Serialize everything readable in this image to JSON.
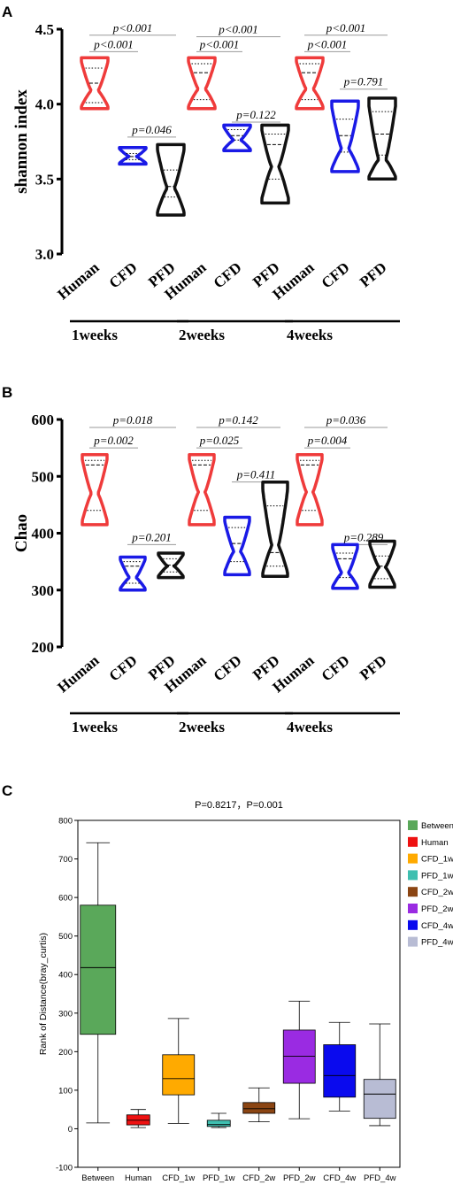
{
  "chart_data": [
    {
      "panel": "A",
      "type": "violin",
      "ylabel": "shannon index",
      "ylim": [
        3.0,
        4.5
      ],
      "yticks": [
        "3.0",
        "3.5",
        "4.0",
        "4.5"
      ],
      "categories": [
        "Human",
        "CFD",
        "PFD",
        "Human",
        "CFD",
        "PFD",
        "Human",
        "CFD",
        "PFD"
      ],
      "groups": [
        "1weeks",
        "2weeks",
        "4weeks"
      ],
      "series": [
        {
          "group": "1weeks",
          "category": "Human",
          "color": "#ef3b3b",
          "min": 3.97,
          "q1": 4.01,
          "median": 4.14,
          "q3": 4.24,
          "max": 4.31,
          "neck": 4.09
        },
        {
          "group": "1weeks",
          "category": "CFD",
          "color": "#1a1ae6",
          "min": 3.6,
          "q1": 3.63,
          "median": 3.65,
          "q3": 3.67,
          "max": 3.71,
          "neck": 3.65
        },
        {
          "group": "1weeks",
          "category": "PFD",
          "color": "#111111",
          "min": 3.26,
          "q1": 3.38,
          "median": 3.45,
          "q3": 3.56,
          "max": 3.73,
          "neck": 3.44
        },
        {
          "group": "2weeks",
          "category": "Human",
          "color": "#ef3b3b",
          "min": 3.97,
          "q1": 4.03,
          "median": 4.21,
          "q3": 4.27,
          "max": 4.31,
          "neck": 4.1
        },
        {
          "group": "2weeks",
          "category": "CFD",
          "color": "#1a1ae6",
          "min": 3.69,
          "q1": 3.76,
          "median": 3.79,
          "q3": 3.83,
          "max": 3.86,
          "neck": 3.76
        },
        {
          "group": "2weeks",
          "category": "PFD",
          "color": "#111111",
          "min": 3.34,
          "q1": 3.5,
          "median": 3.73,
          "q3": 3.8,
          "max": 3.86,
          "neck": 3.58
        },
        {
          "group": "4weeks",
          "category": "Human",
          "color": "#ef3b3b",
          "min": 3.97,
          "q1": 4.03,
          "median": 4.21,
          "q3": 4.27,
          "max": 4.31,
          "neck": 4.1
        },
        {
          "group": "4weeks",
          "category": "CFD",
          "color": "#1a1ae6",
          "min": 3.55,
          "q1": 3.68,
          "median": 3.79,
          "q3": 3.9,
          "max": 4.02,
          "neck": 3.7
        },
        {
          "group": "4weeks",
          "category": "PFD",
          "color": "#111111",
          "min": 3.5,
          "q1": 3.66,
          "median": 3.8,
          "q3": 3.95,
          "max": 4.04,
          "neck": 3.63
        }
      ],
      "brackets": [
        {
          "from": 0,
          "to": 2,
          "y": 4.46,
          "label": "p<0.001"
        },
        {
          "from": 0,
          "to": 1,
          "y": 4.35,
          "label": "p<0.001"
        },
        {
          "from": 1,
          "to": 2,
          "y": 3.78,
          "label": "p=0.046"
        },
        {
          "from": 3,
          "to": 5,
          "y": 4.45,
          "label": "p<0.001"
        },
        {
          "from": 3,
          "to": 4,
          "y": 4.35,
          "label": "p<0.001"
        },
        {
          "from": 4,
          "to": 5,
          "y": 3.88,
          "label": "p=0.122"
        },
        {
          "from": 6,
          "to": 8,
          "y": 4.46,
          "label": "p<0.001"
        },
        {
          "from": 6,
          "to": 7,
          "y": 4.35,
          "label": "p<0.001"
        },
        {
          "from": 7,
          "to": 8,
          "y": 4.1,
          "label": "p=0.791"
        }
      ]
    },
    {
      "panel": "B",
      "type": "violin",
      "ylabel": "Chao",
      "ylim": [
        200,
        600
      ],
      "yticks": [
        "200",
        "300",
        "400",
        "500",
        "600"
      ],
      "categories": [
        "Human",
        "CFD",
        "PFD",
        "Human",
        "CFD",
        "PFD",
        "Human",
        "CFD",
        "PFD"
      ],
      "groups": [
        "1weeks",
        "2weeks",
        "4weeks"
      ],
      "series": [
        {
          "group": "1weeks",
          "category": "Human",
          "color": "#ef3b3b",
          "min": 415,
          "q1": 440,
          "median": 520,
          "q3": 528,
          "max": 538,
          "neck": 470
        },
        {
          "group": "1weeks",
          "category": "CFD",
          "color": "#1a1ae6",
          "min": 300,
          "q1": 312,
          "median": 342,
          "q3": 350,
          "max": 358,
          "neck": 322
        },
        {
          "group": "1weeks",
          "category": "PFD",
          "color": "#111111",
          "min": 322,
          "q1": 332,
          "median": 344,
          "q3": 355,
          "max": 365,
          "neck": 342
        },
        {
          "group": "2weeks",
          "category": "Human",
          "color": "#ef3b3b",
          "min": 415,
          "q1": 440,
          "median": 520,
          "q3": 528,
          "max": 538,
          "neck": 472
        },
        {
          "group": "2weeks",
          "category": "CFD",
          "color": "#1a1ae6",
          "min": 327,
          "q1": 350,
          "median": 382,
          "q3": 410,
          "max": 428,
          "neck": 368
        },
        {
          "group": "2weeks",
          "category": "PFD",
          "color": "#111111",
          "min": 324,
          "q1": 342,
          "median": 366,
          "q3": 448,
          "max": 490,
          "neck": 378
        },
        {
          "group": "4weeks",
          "category": "Human",
          "color": "#ef3b3b",
          "min": 415,
          "q1": 440,
          "median": 520,
          "q3": 528,
          "max": 538,
          "neck": 472
        },
        {
          "group": "4weeks",
          "category": "CFD",
          "color": "#1a1ae6",
          "min": 303,
          "q1": 322,
          "median": 355,
          "q3": 365,
          "max": 380,
          "neck": 330
        },
        {
          "group": "4weeks",
          "category": "PFD",
          "color": "#111111",
          "min": 305,
          "q1": 320,
          "median": 342,
          "q3": 360,
          "max": 386,
          "neck": 340
        }
      ],
      "brackets": [
        {
          "from": 0,
          "to": 2,
          "y": 586,
          "label": "p=0.018"
        },
        {
          "from": 0,
          "to": 1,
          "y": 550,
          "label": "p=0.002"
        },
        {
          "from": 1,
          "to": 2,
          "y": 380,
          "label": "p=0.201"
        },
        {
          "from": 3,
          "to": 5,
          "y": 586,
          "label": "p=0.142"
        },
        {
          "from": 3,
          "to": 4,
          "y": 550,
          "label": "p=0.025"
        },
        {
          "from": 4,
          "to": 5,
          "y": 490,
          "label": "p=0.411"
        },
        {
          "from": 6,
          "to": 8,
          "y": 586,
          "label": "p=0.036"
        },
        {
          "from": 6,
          "to": 7,
          "y": 550,
          "label": "p=0.004"
        },
        {
          "from": 7,
          "to": 8,
          "y": 380,
          "label": "p=0.289"
        }
      ]
    },
    {
      "panel": "C",
      "type": "box",
      "title": "P=0.8217，P=0.001",
      "ylabel": "Rank of Distance(bray_curtis)",
      "ylim": [
        -100,
        800
      ],
      "yticks": [
        "-100",
        "0",
        "100",
        "200",
        "300",
        "400",
        "500",
        "600",
        "700",
        "800"
      ],
      "categories": [
        "Between",
        "Human",
        "CFD_1w",
        "PFD_1w",
        "CFD_2w",
        "PFD_2w",
        "CFD_4w",
        "PFD_4w"
      ],
      "series": [
        {
          "name": "Between",
          "color": "#5aa85a",
          "min": 15,
          "q1": 245,
          "median": 418,
          "q3": 580,
          "max": 742
        },
        {
          "name": "Human",
          "color": "#ee1111",
          "min": 3,
          "q1": 10,
          "median": 22,
          "q3": 36,
          "max": 50
        },
        {
          "name": "CFD_1w",
          "color": "#ffaa00",
          "min": 14,
          "q1": 88,
          "median": 130,
          "q3": 192,
          "max": 286
        },
        {
          "name": "PFD_1w",
          "color": "#3fbfb0",
          "min": 3,
          "q1": 6,
          "median": 11,
          "q3": 22,
          "max": 40
        },
        {
          "name": "CFD_2w",
          "color": "#8b4513",
          "min": 18,
          "q1": 40,
          "median": 52,
          "q3": 68,
          "max": 106
        },
        {
          "name": "PFD_2w",
          "color": "#9a2be2",
          "min": 26,
          "q1": 118,
          "median": 188,
          "q3": 256,
          "max": 331
        },
        {
          "name": "CFD_4w",
          "color": "#0a0aee",
          "min": 46,
          "q1": 82,
          "median": 138,
          "q3": 218,
          "max": 276
        },
        {
          "name": "PFD_4w",
          "color": "#b8bcd4",
          "min": 8,
          "q1": 27,
          "median": 90,
          "q3": 128,
          "max": 272
        }
      ]
    }
  ],
  "panel_labels": [
    "A",
    "B",
    "C"
  ]
}
